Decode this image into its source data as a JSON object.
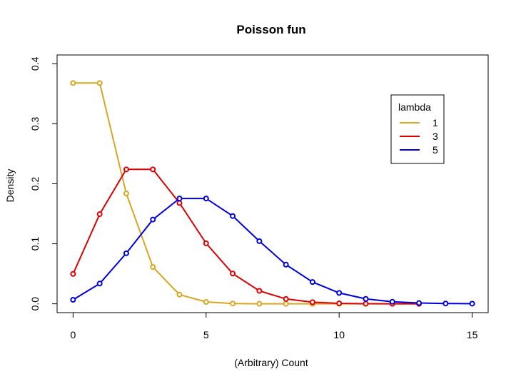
{
  "chart_data": {
    "type": "line",
    "title": "Poisson fun",
    "xlabel": "(Arbitrary) Count",
    "ylabel": "Density",
    "xlim": [
      -0.6,
      15.6
    ],
    "ylim": [
      -0.0147,
      0.4147
    ],
    "xticks": [
      0,
      5,
      10,
      15
    ],
    "xtick_labels": [
      "0",
      "5",
      "10",
      "15"
    ],
    "yticks": [
      0.0,
      0.1,
      0.2,
      0.3,
      0.4
    ],
    "ytick_labels": [
      "0.0",
      "0.1",
      "0.2",
      "0.3",
      "0.4"
    ],
    "grid": false,
    "legend": {
      "title": "lambda",
      "position": "top-right"
    },
    "series": [
      {
        "name": "1",
        "color": "#DAA520",
        "x": [
          0,
          1,
          2,
          3,
          4,
          5,
          6,
          7,
          8,
          9,
          10,
          11,
          12,
          13
        ],
        "values": [
          0.3679,
          0.3679,
          0.1839,
          0.0613,
          0.0153,
          0.0031,
          0.0005,
          0.0001,
          0.0,
          0.0,
          0.0,
          0.0,
          0.0,
          0.0
        ]
      },
      {
        "name": "3",
        "color": "#DD0000",
        "x": [
          0,
          1,
          2,
          3,
          4,
          5,
          6,
          7,
          8,
          9,
          10,
          11,
          12,
          13
        ],
        "values": [
          0.0498,
          0.1494,
          0.224,
          0.224,
          0.168,
          0.1008,
          0.0504,
          0.0216,
          0.0081,
          0.0027,
          0.0008,
          0.0002,
          0.0001,
          0.0
        ]
      },
      {
        "name": "5",
        "color": "#0000DD",
        "x": [
          0,
          1,
          2,
          3,
          4,
          5,
          6,
          7,
          8,
          9,
          10,
          11,
          12,
          13,
          14,
          15
        ],
        "values": [
          0.0067,
          0.0337,
          0.0842,
          0.1404,
          0.1755,
          0.1755,
          0.1462,
          0.1044,
          0.0653,
          0.0363,
          0.0181,
          0.0082,
          0.0034,
          0.0013,
          0.0005,
          0.0002
        ]
      }
    ]
  }
}
